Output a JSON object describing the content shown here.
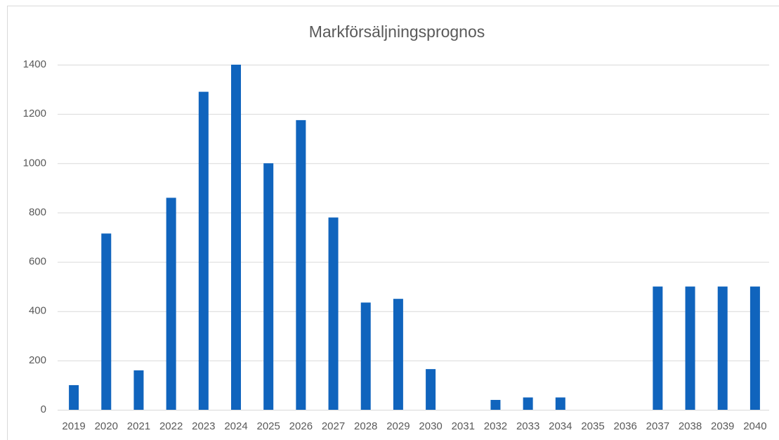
{
  "chart_data": {
    "type": "bar",
    "title": "Markförsäljningsprognos",
    "categories": [
      "2019",
      "2020",
      "2021",
      "2022",
      "2023",
      "2024",
      "2025",
      "2026",
      "2027",
      "2028",
      "2029",
      "2030",
      "2031",
      "2032",
      "2033",
      "2034",
      "2035",
      "2036",
      "2037",
      "2038",
      "2039",
      "2040"
    ],
    "values": [
      100,
      715,
      160,
      860,
      1290,
      1400,
      1000,
      1175,
      780,
      435,
      450,
      165,
      0,
      40,
      50,
      50,
      0,
      0,
      500,
      500,
      500,
      500
    ],
    "color": "#1064bd",
    "ylim": [
      0,
      1400
    ],
    "yticks": [
      0,
      200,
      400,
      600,
      800,
      1000,
      1200,
      1400
    ],
    "grid": true
  }
}
